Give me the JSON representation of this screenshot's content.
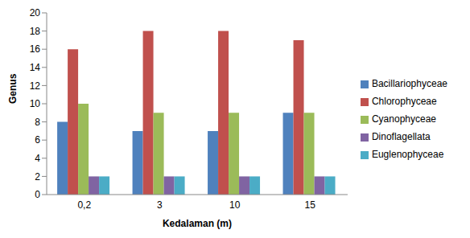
{
  "chart_data": {
    "type": "bar",
    "categories": [
      "0,2",
      "3",
      "10",
      "15"
    ],
    "x_label": "Kedalaman (m)",
    "y_label": "Genus",
    "series": [
      {
        "name": "Bacillariophyceae",
        "color": "#4f81bd",
        "values": [
          8,
          7,
          7,
          9
        ]
      },
      {
        "name": "Chlorophyceae",
        "color": "#c0504d",
        "values": [
          16,
          18,
          18,
          17
        ]
      },
      {
        "name": "Cyanophyceae",
        "color": "#9bbb59",
        "values": [
          10,
          9,
          9,
          9
        ]
      },
      {
        "name": "Dinoflagellata",
        "color": "#8064a2",
        "values": [
          2,
          2,
          2,
          2
        ]
      },
      {
        "name": "Euglenophyceae",
        "color": "#4bacc6",
        "values": [
          2,
          2,
          2,
          2
        ]
      }
    ],
    "ylim": [
      0,
      20
    ],
    "yticks": [
      0,
      2,
      4,
      6,
      8,
      10,
      12,
      14,
      16,
      18,
      20
    ],
    "grid": false,
    "legend": "right"
  }
}
